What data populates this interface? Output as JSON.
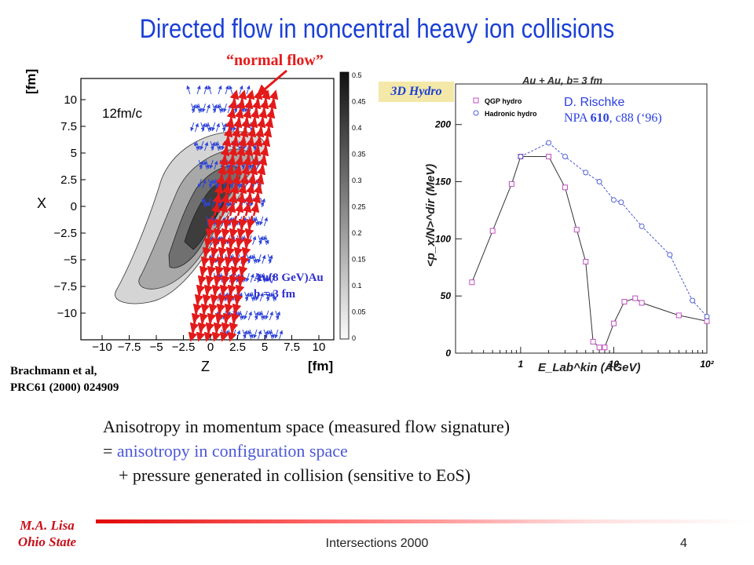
{
  "slide": {
    "title": "Directed flow in noncentral heavy ion collisions",
    "normal_flow_label": "“normal flow”",
    "hydro_tag": "3D Hydro",
    "credit_line1": "D. Rischke",
    "credit_line2_a": "NPA ",
    "credit_line2_b": "610",
    "credit_line2_c": ", c88 (‘96)",
    "citation_line1": "Brachmann et al,",
    "citation_line2": "PRC61 (2000) 024909",
    "system_line1": "Au(8 GeV)Au",
    "system_line2": "b = 3 fm",
    "body_line1": "Anisotropy in momentum space (measured flow signature)",
    "body_line2_prefix": "= ",
    "body_line2_blue": "anisotropy in configuration space",
    "body_line3": "+ pressure generated in collision (sensitive to EoS)",
    "footer_author1": "M.A. Lisa",
    "footer_author2": "Ohio State",
    "footer_event": "Intersections 2000",
    "page_number": "4",
    "colors": {
      "title": "#1a3fd6",
      "accent_red": "#e41a1a",
      "blue_arrows": "#2f46d8"
    }
  },
  "left_plot": {
    "time_label": "12fm/c",
    "x_axis_title": "Z",
    "y_axis_title": "X",
    "unit_x": "[fm]",
    "unit_y": "[fm]",
    "x_ticks": [
      "−10",
      "−7.5",
      "−5",
      "−2.5",
      "0",
      "2.5",
      "5",
      "7.5",
      "10"
    ],
    "y_ticks": [
      "10",
      "7.5",
      "5",
      "2.5",
      "0",
      "−2.5",
      "−5",
      "−7.5",
      "−10"
    ],
    "colorbar_ticks": [
      "0.5",
      "0.45",
      "0.4",
      "0.35",
      "0.3",
      "0.25",
      "0.2",
      "0.15",
      "0.1",
      "0.05",
      "0"
    ]
  },
  "chart_data": {
    "type": "line",
    "title": "Au + Au, b= 3 fm",
    "xlabel": "E_Lab^kin (AGeV)",
    "ylabel": "<p_x/N>^dir (MeV)",
    "x_scale": "log",
    "xlim": [
      0.2,
      100
    ],
    "ylim": [
      0,
      230
    ],
    "x_tick_labels": [
      "1",
      "10",
      "10²"
    ],
    "y_tick_labels": [
      "0",
      "50",
      "100",
      "150",
      "200"
    ],
    "legend_position": "top-left",
    "series": [
      {
        "name": "QGP hydro",
        "marker": "square",
        "color": "#c050c0",
        "style": "solid",
        "x": [
          0.3,
          0.5,
          0.8,
          1.0,
          2.0,
          3.0,
          4.0,
          5.0,
          6.0,
          7.0,
          8.0,
          10.0,
          13.0,
          17.0,
          20.0,
          50.0,
          100.0
        ],
        "y": [
          62,
          107,
          148,
          172,
          172,
          145,
          108,
          80,
          10,
          5,
          5,
          26,
          45,
          48,
          44,
          33,
          28
        ]
      },
      {
        "name": "Hadronic hydro",
        "marker": "circle",
        "color": "#5060d0",
        "style": "dashed",
        "x": [
          1.0,
          2.0,
          3.0,
          5.0,
          7.0,
          10.0,
          12.0,
          20.0,
          40.0,
          70.0,
          100.0
        ],
        "y": [
          172,
          184,
          172,
          158,
          150,
          134,
          132,
          111,
          86,
          46,
          32
        ]
      }
    ]
  }
}
